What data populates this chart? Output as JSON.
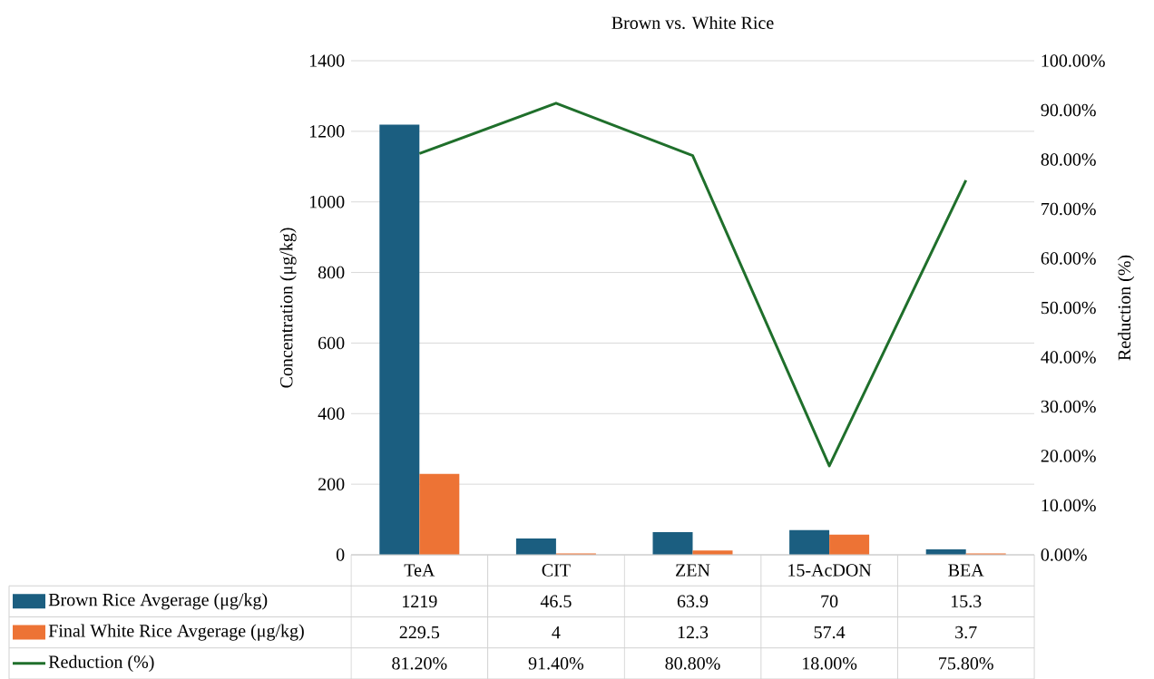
{
  "chart_data": {
    "type": "bar",
    "title": "Brown vs. White Rice",
    "ylabel": "Concentration (μg/kg)",
    "y2label": "Reduction (%)",
    "categories": [
      "TeA",
      "CIT",
      "ZEN",
      "15-AcDON",
      "BEA"
    ],
    "series": [
      {
        "name": "Brown Rice Avgerage (μg/kg)",
        "color": "#1b5e80",
        "values": [
          1219,
          46.5,
          63.9,
          70,
          15.3
        ],
        "value_labels": [
          "1219",
          "46.5",
          "63.9",
          "70",
          "15.3"
        ]
      },
      {
        "name": "Final White Rice Avgerage (μg/kg)",
        "color": "#ed7335",
        "values": [
          229.5,
          4,
          12.3,
          57.4,
          3.7
        ],
        "value_labels": [
          "229.5",
          "4",
          "12.3",
          "57.4",
          "3.7"
        ]
      },
      {
        "name": "Reduction (%)",
        "type": "line",
        "axis": "y2",
        "color": "#1f6f2b",
        "values": [
          81.2,
          91.4,
          80.8,
          18.0,
          75.8
        ],
        "value_labels": [
          "81.20%",
          "91.40%",
          "80.80%",
          "18.00%",
          "75.80%"
        ]
      }
    ],
    "ylim": [
      0,
      1400
    ],
    "yticks": [
      0,
      200,
      400,
      600,
      800,
      1000,
      1200,
      1400
    ],
    "y2lim": [
      0,
      100
    ],
    "y2ticks": [
      {
        "value": 0,
        "label": "0.00%"
      },
      {
        "value": 10,
        "label": "10.00%"
      },
      {
        "value": 20,
        "label": "20.00%"
      },
      {
        "value": 30,
        "label": "30.00%"
      },
      {
        "value": 40,
        "label": "40.00%"
      },
      {
        "value": 50,
        "label": "50.00%"
      },
      {
        "value": 60,
        "label": "60.00%"
      },
      {
        "value": 70,
        "label": "70.00%"
      },
      {
        "value": 80,
        "label": "80.00%"
      },
      {
        "value": 90,
        "label": "90.00%"
      },
      {
        "value": 100,
        "label": "100.00%"
      }
    ],
    "grid": "y",
    "legend": "bottom"
  }
}
